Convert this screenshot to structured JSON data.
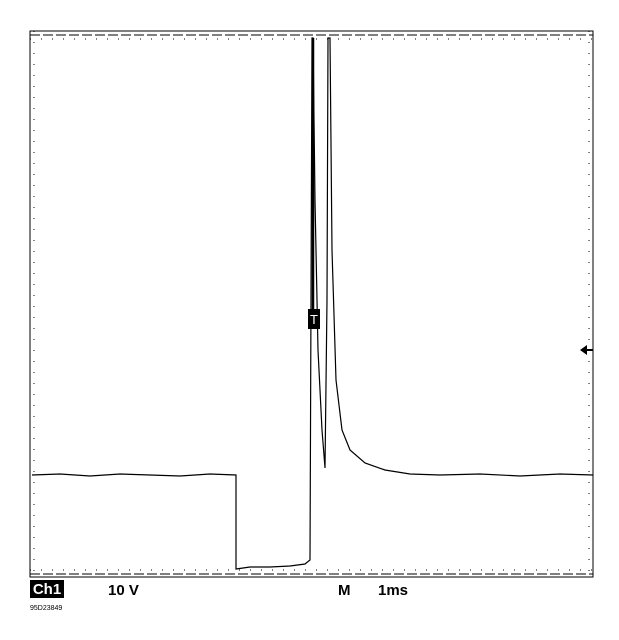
{
  "trigger_marker": "T",
  "status_bar": {
    "channel": "Ch1",
    "volts_per_div": "10 V",
    "mode": "M",
    "time_per_div": "1ms"
  },
  "figure_code": "95D23849"
}
